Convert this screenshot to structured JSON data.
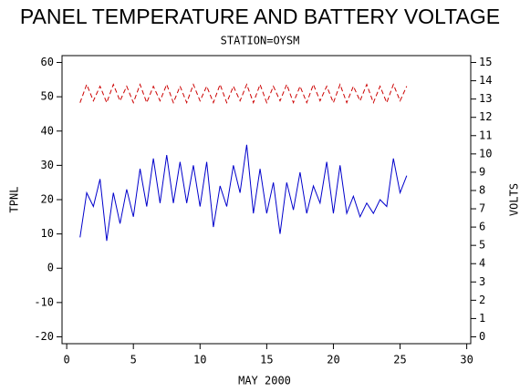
{
  "chart_data": {
    "type": "line",
    "title": "PANEL TEMPERATURE AND BATTERY VOLTAGE",
    "subtitle": "STATION=OYSM",
    "x_label": "MAY 2000",
    "y_label": "TPNL",
    "y2_label": "VOLTS",
    "x": [
      1.0,
      1.5,
      2.0,
      2.5,
      3.0,
      3.5,
      4.0,
      4.5,
      5.0,
      5.5,
      6.0,
      6.5,
      7.0,
      7.5,
      8.0,
      8.5,
      9.0,
      9.5,
      10.0,
      10.5,
      11.0,
      11.5,
      12.0,
      12.5,
      13.0,
      13.5,
      14.0,
      14.5,
      15.0,
      15.5,
      16.0,
      16.5,
      17.0,
      17.5,
      18.0,
      18.5,
      19.0,
      19.5,
      20.0,
      20.5,
      21.0,
      21.5,
      22.0,
      22.5,
      23.0,
      23.5,
      24.0,
      24.5,
      25.0,
      25.5
    ],
    "series": [
      {
        "color": "#0000cc",
        "values": [
          9,
          22,
          18,
          26,
          8,
          22,
          13,
          23,
          15,
          29,
          18,
          32,
          19,
          33,
          19,
          31,
          19,
          30,
          18,
          31,
          12,
          24,
          18,
          30,
          22,
          36,
          16,
          29,
          16,
          25,
          10,
          25,
          17,
          28,
          16,
          24,
          19,
          31,
          16,
          30,
          16,
          21,
          15,
          19,
          16,
          20,
          18,
          32,
          22,
          27
        ]
      },
      {
        "color": "#cc0000",
        "axis": "y2",
        "dashed": true,
        "values": [
          12.8,
          13.8,
          12.9,
          13.7,
          12.8,
          13.8,
          12.9,
          13.7,
          12.8,
          13.8,
          12.8,
          13.7,
          12.9,
          13.8,
          12.8,
          13.7,
          12.8,
          13.8,
          12.9,
          13.7,
          12.8,
          13.8,
          12.8,
          13.7,
          12.9,
          13.8,
          12.8,
          13.8,
          12.8,
          13.7,
          12.9,
          13.8,
          12.8,
          13.7,
          12.8,
          13.8,
          12.9,
          13.7,
          12.8,
          13.8,
          12.8,
          13.7,
          12.9,
          13.8,
          12.8,
          13.7,
          12.8,
          13.8,
          12.9,
          13.7
        ]
      }
    ],
    "xlim": [
      -0.35,
      30.3
    ],
    "xticks": [
      0,
      5,
      10,
      15,
      20,
      25,
      30
    ],
    "ylim": [
      -22,
      62
    ],
    "yticks": [
      -20,
      -10,
      0,
      10,
      20,
      30,
      40,
      50,
      60
    ],
    "y2lim": [
      -0.375,
      15.375
    ],
    "y2ticks": [
      0,
      1,
      2,
      3,
      4,
      5,
      6,
      7,
      8,
      9,
      10,
      11,
      12,
      13,
      14,
      15
    ]
  }
}
